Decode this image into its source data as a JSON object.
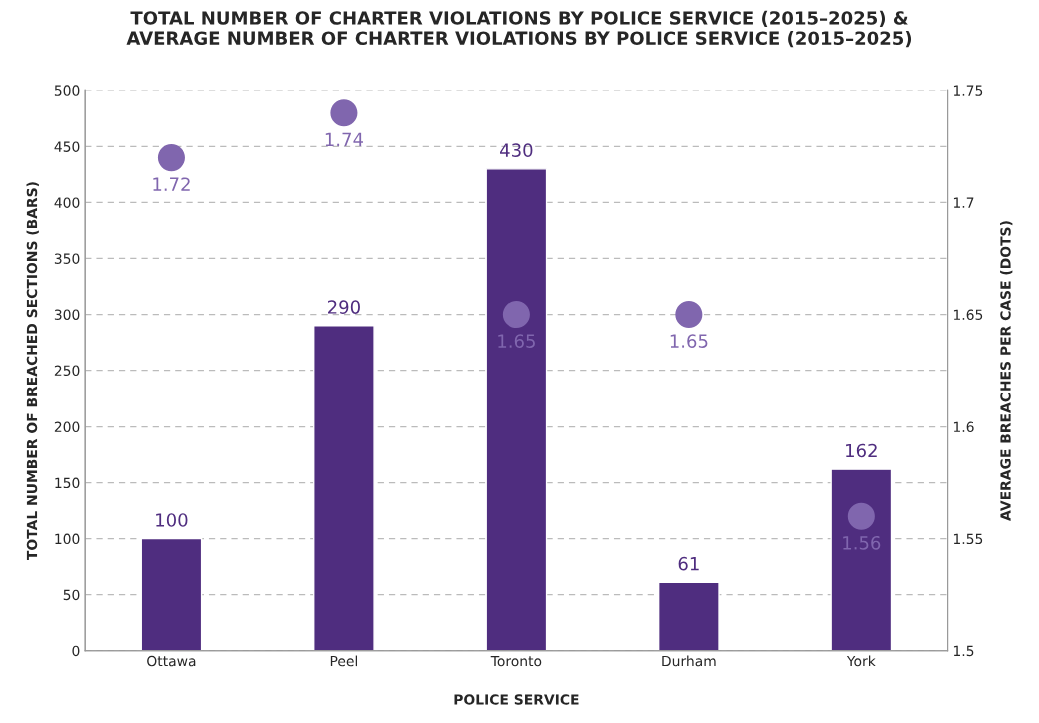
{
  "chart_data": {
    "type": "bar",
    "title": "TOTAL NUMBER OF CHARTER VIOLATIONS BY POLICE SERVICE (2015–2025) &\nAVERAGE NUMBER OF CHARTER VIOLATIONS BY POLICE SERVICE (2015–2025)",
    "xlabel": "POLICE SERVICE",
    "ylabel": "TOTAL NUMBER OF BREACHED SECTIONS (BARS)",
    "y2label": "AVERAGE BREACHES PER CASE (DOTS)",
    "categories": [
      "Ottawa",
      "Peel",
      "Toronto",
      "Durham",
      "York"
    ],
    "series": [
      {
        "color": "#4f2d7f",
        "values": [
          100,
          290,
          430,
          61,
          162
        ]
      },
      {
        "type": "scatter",
        "axis": "y2",
        "color": "#8066ae",
        "marker": "circle",
        "values": [
          1.72,
          1.74,
          1.65,
          1.65,
          1.56
        ]
      }
    ],
    "ylim": [
      0,
      500
    ],
    "yticks": [
      0,
      50,
      100,
      150,
      200,
      250,
      300,
      350,
      400,
      450,
      500
    ],
    "y2lim": [
      1.5,
      1.75
    ],
    "y2ticks": [
      1.5,
      1.55,
      1.6,
      1.65,
      1.7,
      1.75
    ],
    "data_labels": true,
    "grid": "y",
    "legend": false
  }
}
